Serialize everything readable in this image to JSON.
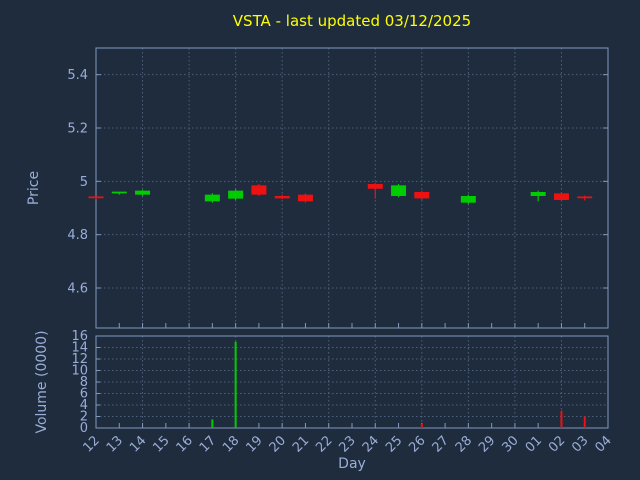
{
  "chart_data": {
    "type": "candlestick",
    "title": "VSTA - last updated 03/12/2025",
    "xlabel": "Day",
    "price_ylabel": "Price",
    "volume_ylabel": "Volume (0000)",
    "price_ylim": [
      4.45,
      5.5
    ],
    "price_yticks": [
      4.6,
      4.8,
      5,
      5.2,
      5.4
    ],
    "volume_ylim": [
      0,
      16
    ],
    "volume_yticks": [
      0,
      2,
      4,
      6,
      8,
      10,
      12,
      14,
      16
    ],
    "grid": true,
    "legend": "none",
    "days": [
      "12",
      "13",
      "14",
      "15",
      "16",
      "17",
      "18",
      "19",
      "20",
      "21",
      "22",
      "23",
      "24",
      "25",
      "26",
      "27",
      "28",
      "29",
      "30",
      "01",
      "02",
      "03",
      "04"
    ],
    "candles": [
      {
        "day": "12",
        "open": 4.94,
        "high": 4.943,
        "low": 4.933,
        "close": 4.935,
        "direction": "down"
      },
      {
        "day": "13",
        "open": 4.953,
        "high": 4.96,
        "low": 4.95,
        "close": 4.958,
        "direction": "up"
      },
      {
        "day": "14",
        "open": 4.95,
        "high": 4.968,
        "low": 4.945,
        "close": 4.965,
        "direction": "up"
      },
      {
        "day": "17",
        "open": 4.925,
        "high": 4.955,
        "low": 4.92,
        "close": 4.95,
        "direction": "up"
      },
      {
        "day": "18",
        "open": 4.935,
        "high": 4.97,
        "low": 4.93,
        "close": 4.965,
        "direction": "up"
      },
      {
        "day": "19",
        "open": 4.985,
        "high": 4.99,
        "low": 4.945,
        "close": 4.95,
        "direction": "down"
      },
      {
        "day": "20",
        "open": 4.945,
        "high": 4.95,
        "low": 4.933,
        "close": 4.936,
        "direction": "down"
      },
      {
        "day": "21",
        "open": 4.95,
        "high": 4.955,
        "low": 4.92,
        "close": 4.925,
        "direction": "down"
      },
      {
        "day": "24",
        "open": 4.99,
        "high": 4.995,
        "low": 4.935,
        "close": 4.972,
        "direction": "down"
      },
      {
        "day": "25",
        "open": 4.945,
        "high": 4.99,
        "low": 4.94,
        "close": 4.985,
        "direction": "up"
      },
      {
        "day": "26",
        "open": 4.96,
        "high": 4.965,
        "low": 4.93,
        "close": 4.936,
        "direction": "down"
      },
      {
        "day": "28",
        "open": 4.92,
        "high": 4.95,
        "low": 4.915,
        "close": 4.945,
        "direction": "up"
      },
      {
        "day": "01",
        "open": 4.945,
        "high": 4.965,
        "low": 4.925,
        "close": 4.96,
        "direction": "up"
      },
      {
        "day": "02",
        "open": 4.955,
        "high": 4.96,
        "low": 4.925,
        "close": 4.93,
        "direction": "down"
      },
      {
        "day": "03",
        "open": 4.94,
        "high": 4.947,
        "low": 4.928,
        "close": 4.935,
        "direction": "down"
      }
    ],
    "volumes": [
      {
        "day": "17",
        "value": 1.5,
        "direction": "up"
      },
      {
        "day": "18",
        "value": 15,
        "direction": "up"
      },
      {
        "day": "26",
        "value": 0.7,
        "direction": "down"
      },
      {
        "day": "02",
        "value": 3,
        "direction": "down"
      },
      {
        "day": "03",
        "value": 2,
        "direction": "down"
      }
    ],
    "colors": {
      "background": "#1e2c3e",
      "title": "#ffff00",
      "tick_label": "#9badd6",
      "axis_label": "#9badd6",
      "axis": "#8298bc",
      "grid": "#50617c",
      "up": "#00cc00",
      "down": "#ee1111"
    }
  }
}
